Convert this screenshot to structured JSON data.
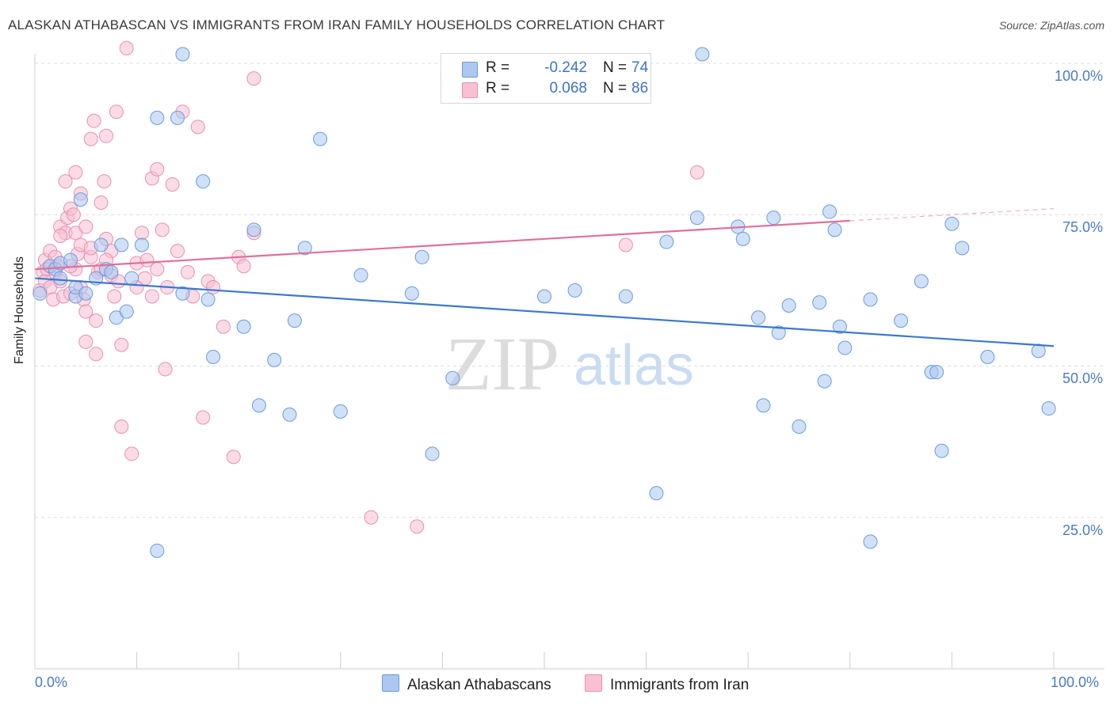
{
  "header": {
    "title": "ALASKAN ATHABASCAN VS IMMIGRANTS FROM IRAN FAMILY HOUSEHOLDS CORRELATION CHART",
    "source": "Source: ZipAtlas.com"
  },
  "watermark": {
    "zip": "ZIP",
    "atlas": "atlas"
  },
  "legend": {
    "rows": [
      {
        "r_label": "R =",
        "r_value": "-0.242",
        "n_label": "N =",
        "n_value": "74",
        "color": "#aac8f0",
        "border": "#6a9be0"
      },
      {
        "r_label": "R =",
        "r_value": "0.068",
        "n_label": "N =",
        "n_value": "86",
        "color": "#f8c0d2",
        "border": "#e890b0"
      }
    ]
  },
  "axes": {
    "ylabel": "Family Households",
    "y_ticks": [
      "100.0%",
      "75.0%",
      "50.0%",
      "25.0%"
    ],
    "x_left": "0.0%",
    "x_right": "100.0%"
  },
  "bottom_legend": {
    "blue_label": "Alaskan Athabascans",
    "pink_label": "Immigrants from Iran"
  },
  "chart_data": {
    "type": "scatter",
    "title": "ALASKAN ATHABASCAN VS IMMIGRANTS FROM IRAN FAMILY HOUSEHOLDS CORRELATION CHART",
    "xlabel": "",
    "ylabel": "Family Households",
    "xlim": [
      0,
      100
    ],
    "ylim": [
      0,
      100
    ],
    "grid": true,
    "legend_placement": "top-center",
    "colors": {
      "blue": "#6a9be0",
      "blue_fill": "#aac8f0",
      "blue_line": "#3b78d0",
      "pink": "#e890b0",
      "pink_fill": "#f8c0d2",
      "pink_line": "#e0709a"
    },
    "series": [
      {
        "name": "Alaskan Athabascans",
        "color": "blue",
        "points": [
          [
            0.5,
            62.0
          ],
          [
            1.5,
            66.5
          ],
          [
            2.0,
            66.0
          ],
          [
            2.5,
            64.5
          ],
          [
            2.5,
            67.0
          ],
          [
            3.5,
            67.5
          ],
          [
            4.0,
            61.5
          ],
          [
            4.0,
            63.0
          ],
          [
            4.5,
            77.5
          ],
          [
            5.0,
            62.0
          ],
          [
            6.0,
            64.5
          ],
          [
            6.5,
            70.0
          ],
          [
            7.0,
            66.0
          ],
          [
            7.5,
            65.5
          ],
          [
            8.0,
            58.0
          ],
          [
            8.5,
            70.0
          ],
          [
            9.0,
            59.0
          ],
          [
            9.5,
            64.5
          ],
          [
            10.5,
            70.0
          ],
          [
            12.0,
            19.5
          ],
          [
            12.0,
            91.0
          ],
          [
            14.0,
            91.0
          ],
          [
            14.5,
            101.5
          ],
          [
            14.5,
            62.0
          ],
          [
            16.5,
            80.5
          ],
          [
            17.0,
            61.0
          ],
          [
            17.5,
            51.5
          ],
          [
            20.5,
            56.5
          ],
          [
            21.5,
            72.5
          ],
          [
            22.0,
            43.5
          ],
          [
            23.5,
            51.0
          ],
          [
            25.0,
            42.0
          ],
          [
            25.5,
            57.5
          ],
          [
            26.5,
            69.5
          ],
          [
            28.0,
            87.5
          ],
          [
            30.0,
            42.5
          ],
          [
            32.0,
            65.0
          ],
          [
            37.0,
            62.0
          ],
          [
            38.0,
            68.0
          ],
          [
            39.0,
            35.5
          ],
          [
            41.0,
            48.0
          ],
          [
            50.0,
            61.5
          ],
          [
            53.0,
            62.5
          ],
          [
            58.0,
            61.5
          ],
          [
            61.0,
            29.0
          ],
          [
            62.0,
            70.5
          ],
          [
            65.0,
            74.5
          ],
          [
            65.5,
            101.5
          ],
          [
            69.0,
            73.0
          ],
          [
            69.5,
            71.0
          ],
          [
            71.0,
            58.0
          ],
          [
            71.5,
            43.5
          ],
          [
            72.5,
            74.5
          ],
          [
            73.0,
            55.5
          ],
          [
            74.0,
            60.0
          ],
          [
            75.0,
            40.0
          ],
          [
            77.0,
            60.5
          ],
          [
            77.5,
            47.5
          ],
          [
            78.0,
            75.5
          ],
          [
            78.5,
            72.5
          ],
          [
            79.0,
            56.5
          ],
          [
            79.5,
            53.0
          ],
          [
            82.0,
            61.0
          ],
          [
            82.0,
            21.0
          ],
          [
            85.0,
            57.5
          ],
          [
            87.0,
            64.0
          ],
          [
            88.0,
            49.0
          ],
          [
            88.5,
            49.0
          ],
          [
            89.0,
            36.0
          ],
          [
            90.0,
            73.5
          ],
          [
            91.0,
            69.5
          ],
          [
            93.5,
            51.5
          ],
          [
            98.5,
            52.5
          ],
          [
            99.5,
            43.0
          ]
        ]
      },
      {
        "name": "Immigrants from Iran",
        "color": "pink",
        "points": [
          [
            0.5,
            62.5
          ],
          [
            0.8,
            65.5
          ],
          [
            1.0,
            64.0
          ],
          [
            1.0,
            67.5
          ],
          [
            1.2,
            66.0
          ],
          [
            1.5,
            69.0
          ],
          [
            1.5,
            63.0
          ],
          [
            1.8,
            61.0
          ],
          [
            2.0,
            65.5
          ],
          [
            2.0,
            68.0
          ],
          [
            2.2,
            66.5
          ],
          [
            2.5,
            64.0
          ],
          [
            2.5,
            73.0
          ],
          [
            2.8,
            61.5
          ],
          [
            3.0,
            72.0
          ],
          [
            3.0,
            80.5
          ],
          [
            3.2,
            74.5
          ],
          [
            3.5,
            76.0
          ],
          [
            3.5,
            62.0
          ],
          [
            3.8,
            75.0
          ],
          [
            4.0,
            66.0
          ],
          [
            4.0,
            72.0
          ],
          [
            4.0,
            82.0
          ],
          [
            4.2,
            68.5
          ],
          [
            4.5,
            63.0
          ],
          [
            4.5,
            70.0
          ],
          [
            4.5,
            78.5
          ],
          [
            4.8,
            61.0
          ],
          [
            5.0,
            73.0
          ],
          [
            5.0,
            59.0
          ],
          [
            5.0,
            54.0
          ],
          [
            5.5,
            68.0
          ],
          [
            5.5,
            87.5
          ],
          [
            5.8,
            90.5
          ],
          [
            6.0,
            57.5
          ],
          [
            6.0,
            52.0
          ],
          [
            6.2,
            65.5
          ],
          [
            6.5,
            77.0
          ],
          [
            6.8,
            80.5
          ],
          [
            7.0,
            71.0
          ],
          [
            7.0,
            88.0
          ],
          [
            7.5,
            69.0
          ],
          [
            7.5,
            65.0
          ],
          [
            7.8,
            61.5
          ],
          [
            8.0,
            92.0
          ],
          [
            8.2,
            64.0
          ],
          [
            8.5,
            40.0
          ],
          [
            8.5,
            53.5
          ],
          [
            9.0,
            102.5
          ],
          [
            9.5,
            35.5
          ],
          [
            10.0,
            63.0
          ],
          [
            10.0,
            67.0
          ],
          [
            10.5,
            72.0
          ],
          [
            10.8,
            64.5
          ],
          [
            11.0,
            67.5
          ],
          [
            11.5,
            61.5
          ],
          [
            11.5,
            81.0
          ],
          [
            12.0,
            82.5
          ],
          [
            12.0,
            66.0
          ],
          [
            12.5,
            72.5
          ],
          [
            12.8,
            49.5
          ],
          [
            13.0,
            63.0
          ],
          [
            13.5,
            80.0
          ],
          [
            14.0,
            69.0
          ],
          [
            14.5,
            92.0
          ],
          [
            15.0,
            65.5
          ],
          [
            15.5,
            61.5
          ],
          [
            16.0,
            89.5
          ],
          [
            16.5,
            41.5
          ],
          [
            17.0,
            64.0
          ],
          [
            18.5,
            56.5
          ],
          [
            19.5,
            35.0
          ],
          [
            20.0,
            68.0
          ],
          [
            20.5,
            66.5
          ],
          [
            21.5,
            72.0
          ],
          [
            21.5,
            97.5
          ],
          [
            33.0,
            25.0
          ],
          [
            37.5,
            23.5
          ],
          [
            58.0,
            70.0
          ],
          [
            65.0,
            82.0
          ],
          [
            17.5,
            63.0
          ],
          [
            5.5,
            69.5
          ],
          [
            6.5,
            66.0
          ],
          [
            3.5,
            66.5
          ],
          [
            2.5,
            71.5
          ],
          [
            7.0,
            67.5
          ]
        ]
      }
    ],
    "trend_lines": [
      {
        "series": "Alaskan Athabascans",
        "x": [
          0,
          100
        ],
        "y": [
          64.5,
          53.3
        ]
      },
      {
        "series": "Immigrants from Iran",
        "x": [
          0,
          80
        ],
        "y": [
          66.0,
          74.0
        ],
        "dashed_extension_to": [
          100,
          76.0
        ]
      }
    ]
  }
}
